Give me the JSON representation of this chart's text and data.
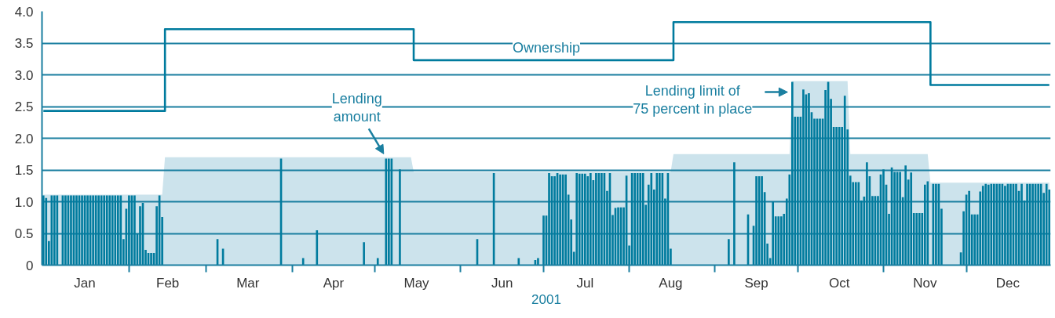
{
  "chart_data": {
    "type": "bar",
    "xlabel": "2001",
    "xlim": [
      "2000-12-31T12:00",
      "2001-12-31T12:00"
    ],
    "xticks": [
      {
        "value": "2001-01-16",
        "label": "Jan"
      },
      {
        "value": "2001-02-15",
        "label": "Feb"
      },
      {
        "value": "2001-03-16",
        "label": "Mar"
      },
      {
        "value": "2001-04-16",
        "label": "Apr"
      },
      {
        "value": "2001-05-16",
        "label": "May"
      },
      {
        "value": "2001-06-16",
        "label": "Jun"
      },
      {
        "value": "2001-07-16",
        "label": "Jul"
      },
      {
        "value": "2001-08-16",
        "label": "Aug"
      },
      {
        "value": "2001-09-16",
        "label": "Sep"
      },
      {
        "value": "2001-10-16",
        "label": "Oct"
      },
      {
        "value": "2001-11-16",
        "label": "Nov"
      },
      {
        "value": "2001-12-16",
        "label": "Dec"
      },
      {
        "value": "2001-02-01",
        "label": null
      },
      {
        "value": "2001-03-01",
        "label": null
      },
      {
        "value": "2001-04-01",
        "label": null
      },
      {
        "value": "2001-05-01",
        "label": null
      },
      {
        "value": "2001-06-01",
        "label": null
      },
      {
        "value": "2001-07-01",
        "label": null
      },
      {
        "value": "2001-08-01",
        "label": null
      },
      {
        "value": "2001-09-01",
        "label": null
      },
      {
        "value": "2001-10-01",
        "label": null
      },
      {
        "value": "2001-11-01",
        "label": null
      },
      {
        "value": "2001-12-01",
        "label": null
      }
    ],
    "ylim": [
      0,
      4.0
    ],
    "yticks": [
      0,
      {
        "value": 0.5,
        "label": "0.5"
      },
      {
        "value": 1,
        "label": "1.0"
      },
      {
        "value": 1.5,
        "label": "1.5"
      },
      {
        "value": 2,
        "label": "2.0"
      },
      {
        "value": 2.5,
        "label": "2.5"
      },
      {
        "value": 3,
        "label": "3.0"
      },
      {
        "value": 3.5,
        "label": "3.5"
      },
      {
        "value": 4,
        "label": "4.0"
      }
    ],
    "grid": "y",
    "series": [
      {
        "type": "area",
        "color": "#cce3ec",
        "x": [
          "2001-01-01",
          "2001-02-13",
          "2001-02-14",
          "2001-05-14",
          "2001-05-15",
          "2001-08-16",
          "2001-08-17",
          "2001-09-28",
          "2001-09-29",
          "2001-10-19",
          "2001-10-20",
          "2001-11-17",
          "2001-11-18",
          "2001-12-31"
        ],
        "values": [
          1.11,
          1.11,
          1.7,
          1.7,
          1.47,
          1.47,
          1.75,
          1.75,
          2.9,
          2.9,
          1.75,
          1.75,
          1.3,
          1.3
        ]
      },
      {
        "color": "#007b9e",
        "x": [
          "2001-01-01",
          "2001-01-02",
          "2001-01-03",
          "2001-01-04",
          "2001-01-05",
          "2001-01-06",
          "2001-01-08",
          "2001-01-09",
          "2001-01-10",
          "2001-01-11",
          "2001-01-12",
          "2001-01-13",
          "2001-01-14",
          "2001-01-15",
          "2001-01-16",
          "2001-01-17",
          "2001-01-18",
          "2001-01-19",
          "2001-01-20",
          "2001-01-21",
          "2001-01-22",
          "2001-01-23",
          "2001-01-24",
          "2001-01-25",
          "2001-01-26",
          "2001-01-27",
          "2001-01-28",
          "2001-01-29",
          "2001-01-30",
          "2001-01-31",
          "2001-02-01",
          "2001-02-02",
          "2001-02-03",
          "2001-02-04",
          "2001-02-05",
          "2001-02-06",
          "2001-02-07",
          "2001-02-08",
          "2001-02-09",
          "2001-02-10",
          "2001-02-11",
          "2001-02-12",
          "2001-02-13",
          "2001-03-05",
          "2001-03-07",
          "2001-03-28",
          "2001-04-05",
          "2001-04-10",
          "2001-04-27",
          "2001-05-02",
          "2001-05-05",
          "2001-05-06",
          "2001-05-07",
          "2001-05-10",
          "2001-06-07",
          "2001-06-13",
          "2001-06-22",
          "2001-06-28",
          "2001-06-29",
          "2001-07-01",
          "2001-07-02",
          "2001-07-03",
          "2001-07-04",
          "2001-07-05",
          "2001-07-06",
          "2001-07-07",
          "2001-07-08",
          "2001-07-09",
          "2001-07-10",
          "2001-07-11",
          "2001-07-12",
          "2001-07-13",
          "2001-07-14",
          "2001-07-15",
          "2001-07-16",
          "2001-07-17",
          "2001-07-18",
          "2001-07-19",
          "2001-07-20",
          "2001-07-21",
          "2001-07-22",
          "2001-07-23",
          "2001-07-24",
          "2001-07-25",
          "2001-07-26",
          "2001-07-27",
          "2001-07-28",
          "2001-07-29",
          "2001-07-30",
          "2001-07-31",
          "2001-08-01",
          "2001-08-02",
          "2001-08-03",
          "2001-08-04",
          "2001-08-05",
          "2001-08-06",
          "2001-08-07",
          "2001-08-08",
          "2001-08-09",
          "2001-08-10",
          "2001-08-11",
          "2001-08-12",
          "2001-08-13",
          "2001-08-14",
          "2001-08-15",
          "2001-08-16",
          "2001-09-06",
          "2001-09-08",
          "2001-09-13",
          "2001-09-15",
          "2001-09-16",
          "2001-09-17",
          "2001-09-18",
          "2001-09-19",
          "2001-09-20",
          "2001-09-21",
          "2001-09-22",
          "2001-09-23",
          "2001-09-24",
          "2001-09-25",
          "2001-09-26",
          "2001-09-27",
          "2001-09-28",
          "2001-09-29",
          "2001-09-30",
          "2001-10-01",
          "2001-10-02",
          "2001-10-03",
          "2001-10-04",
          "2001-10-05",
          "2001-10-06",
          "2001-10-07",
          "2001-10-08",
          "2001-10-09",
          "2001-10-10",
          "2001-10-11",
          "2001-10-12",
          "2001-10-13",
          "2001-10-14",
          "2001-10-15",
          "2001-10-16",
          "2001-10-17",
          "2001-10-18",
          "2001-10-19",
          "2001-10-20",
          "2001-10-21",
          "2001-10-22",
          "2001-10-23",
          "2001-10-24",
          "2001-10-25",
          "2001-10-26",
          "2001-10-27",
          "2001-10-28",
          "2001-10-29",
          "2001-10-30",
          "2001-10-31",
          "2001-11-01",
          "2001-11-02",
          "2001-11-03",
          "2001-11-04",
          "2001-11-05",
          "2001-11-06",
          "2001-11-07",
          "2001-11-08",
          "2001-11-09",
          "2001-11-10",
          "2001-11-11",
          "2001-11-12",
          "2001-11-13",
          "2001-11-14",
          "2001-11-15",
          "2001-11-16",
          "2001-11-17",
          "2001-11-19",
          "2001-11-20",
          "2001-11-21",
          "2001-11-22",
          "2001-11-29",
          "2001-11-30",
          "2001-12-01",
          "2001-12-02",
          "2001-12-03",
          "2001-12-04",
          "2001-12-05",
          "2001-12-06",
          "2001-12-07",
          "2001-12-08",
          "2001-12-09",
          "2001-12-10",
          "2001-12-11",
          "2001-12-12",
          "2001-12-13",
          "2001-12-14",
          "2001-12-15",
          "2001-12-16",
          "2001-12-17",
          "2001-12-18",
          "2001-12-19",
          "2001-12-20",
          "2001-12-21",
          "2001-12-22",
          "2001-12-23",
          "2001-12-24",
          "2001-12-25",
          "2001-12-26",
          "2001-12-27",
          "2001-12-28",
          "2001-12-29",
          "2001-12-30",
          "2001-12-31"
        ],
        "values": [
          1.1,
          1.06,
          0.38,
          1.1,
          1.1,
          1.1,
          1.1,
          1.1,
          1.1,
          1.1,
          1.1,
          1.1,
          1.1,
          1.1,
          1.1,
          1.1,
          1.1,
          1.1,
          1.1,
          1.1,
          1.1,
          1.1,
          1.1,
          1.1,
          1.1,
          1.1,
          1.1,
          1.1,
          0.41,
          0.89,
          1.1,
          1.1,
          1.1,
          0.5,
          0.93,
          0.98,
          0.24,
          0.19,
          0.19,
          0.19,
          0.93,
          1.1,
          0.76,
          0.41,
          0.26,
          1.68,
          0.11,
          0.55,
          0.36,
          0.11,
          1.68,
          1.68,
          1.68,
          1.51,
          0.41,
          1.45,
          0.11,
          0.08,
          0.11,
          0.78,
          0.78,
          1.45,
          1.4,
          1.4,
          1.45,
          1.43,
          1.43,
          1.43,
          1.11,
          0.72,
          0.21,
          1.45,
          1.44,
          1.44,
          1.44,
          1.4,
          1.45,
          1.34,
          1.45,
          1.45,
          1.45,
          1.45,
          1.17,
          1.45,
          0.79,
          0.9,
          0.91,
          0.91,
          0.91,
          1.41,
          0.31,
          1.45,
          1.45,
          1.45,
          1.45,
          1.45,
          0.95,
          1.27,
          1.45,
          1.19,
          1.45,
          1.45,
          1.45,
          1.05,
          1.45,
          0.26,
          0.41,
          1.62,
          0.8,
          0.62,
          1.4,
          1.4,
          1.4,
          1.15,
          0.34,
          0.11,
          1.0,
          0.77,
          0.77,
          0.77,
          0.81,
          1.05,
          1.43,
          2.89,
          2.34,
          2.34,
          2.34,
          2.77,
          2.69,
          2.71,
          2.41,
          2.31,
          2.31,
          2.31,
          2.31,
          2.76,
          2.89,
          2.62,
          2.18,
          2.18,
          2.18,
          2.18,
          2.67,
          2.14,
          1.41,
          1.31,
          1.31,
          1.31,
          1.02,
          1.08,
          1.62,
          1.4,
          1.09,
          1.09,
          1.09,
          1.43,
          1.51,
          1.27,
          0.81,
          1.54,
          1.47,
          1.47,
          1.47,
          1.07,
          1.57,
          1.35,
          1.46,
          0.82,
          0.82,
          0.82,
          0.82,
          1.27,
          1.32,
          1.28,
          1.28,
          1.28,
          0.89,
          0.2,
          0.85,
          1.11,
          1.17,
          0.8,
          0.8,
          0.8,
          1.16,
          1.25,
          1.28,
          1.27,
          1.28,
          1.28,
          1.28,
          1.28,
          1.28,
          1.25,
          1.28,
          1.28,
          1.28,
          1.28,
          1.17,
          1.28,
          1.02,
          1.28,
          1.28,
          1.28,
          1.28,
          1.28,
          1.28,
          1.14,
          1.28,
          1.19
        ]
      },
      {
        "type": "step",
        "name": "Ownership",
        "color": "#007b9e",
        "x": [
          "2001-01-01",
          "2001-02-14",
          "2001-05-15",
          "2001-08-17",
          "2001-11-18",
          "2001-12-31"
        ],
        "values": [
          2.43,
          3.72,
          3.23,
          3.83,
          2.84,
          2.84
        ]
      }
    ],
    "annotations": [
      {
        "text": "Lending\namount",
        "x": "2001-05-05",
        "y": 1.68
      },
      {
        "text": "Lending limit of\n75 percent in place",
        "x": "2001-09-29",
        "y": 2.9
      }
    ]
  }
}
